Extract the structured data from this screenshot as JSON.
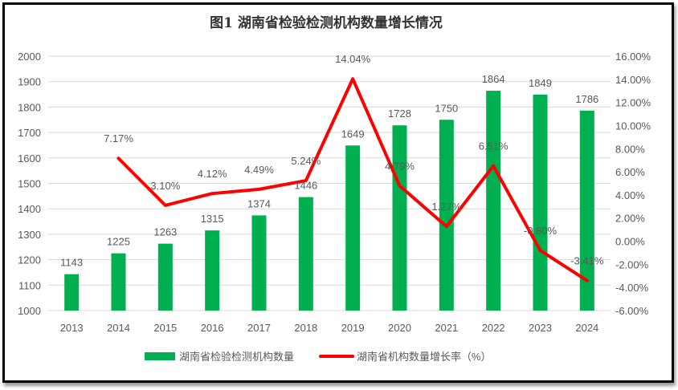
{
  "chart_data": {
    "type": "bar+line",
    "title": "图1 湖南省检验检测机构数量增长情况",
    "categories": [
      "2013",
      "2014",
      "2015",
      "2016",
      "2017",
      "2018",
      "2019",
      "2020",
      "2021",
      "2022",
      "2023",
      "2024"
    ],
    "series": [
      {
        "name": "湖南省检验检测机构数量",
        "type": "bar",
        "axis": "left",
        "color": "#00B050",
        "values": [
          1143,
          1225,
          1263,
          1315,
          1374,
          1446,
          1649,
          1728,
          1750,
          1864,
          1849,
          1786
        ],
        "labels": [
          "1143",
          "1225",
          "1263",
          "1315",
          "1374",
          "1446",
          "1649",
          "1728",
          "1750",
          "1864",
          "1849",
          "1786"
        ]
      },
      {
        "name": "湖南省机构数量增长率（%）",
        "type": "line",
        "axis": "right",
        "color": "#FF0000",
        "values": [
          null,
          7.17,
          3.1,
          4.12,
          4.49,
          5.24,
          14.04,
          4.79,
          1.27,
          6.51,
          -0.8,
          -3.41
        ],
        "labels": [
          "",
          "7.17%",
          "3.10%",
          "4.12%",
          "4.49%",
          "5.24%",
          "14.04%",
          "4.79%",
          "1.27%",
          "6.51%",
          "-0.80%",
          "-3.41%"
        ]
      }
    ],
    "left_axis": {
      "ylim": [
        1000,
        2000
      ],
      "ticks": [
        "1000",
        "1100",
        "1200",
        "1300",
        "1400",
        "1500",
        "1600",
        "1700",
        "1800",
        "1900",
        "2000"
      ]
    },
    "right_axis": {
      "ylim": [
        -6,
        16
      ],
      "ticks": [
        "-6.00%",
        "-4.00%",
        "-2.00%",
        "0.00%",
        "2.00%",
        "4.00%",
        "6.00%",
        "8.00%",
        "10.00%",
        "12.00%",
        "14.00%",
        "16.00%"
      ]
    },
    "grid": true,
    "legend": "bottom"
  }
}
